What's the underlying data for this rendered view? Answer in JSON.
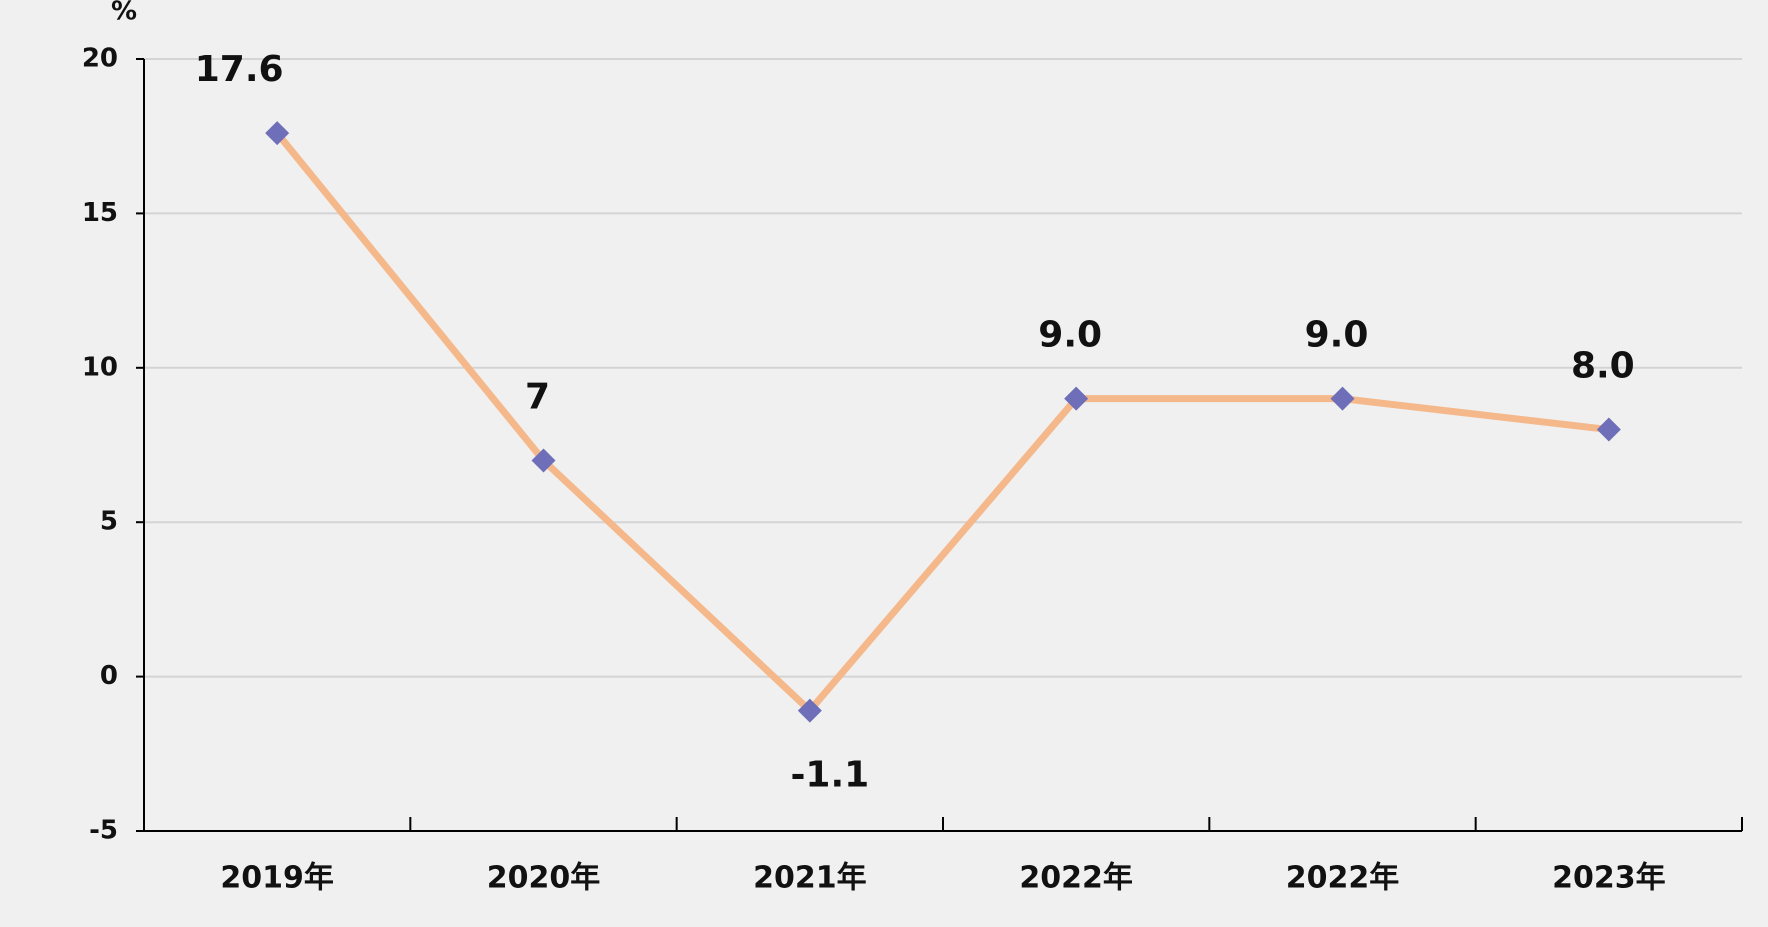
{
  "chart_data": {
    "type": "line",
    "y_unit_label": "%",
    "categories": [
      "2019年",
      "2020年",
      "2021年",
      "2022年",
      "2022年",
      "2023年"
    ],
    "series": [
      {
        "color": "#f5b88a",
        "marker_color": "#6e6fb8",
        "values": [
          17.6,
          7,
          -1.1,
          9.0,
          9.0,
          8.0
        ],
        "value_labels": [
          "17.6",
          "7",
          "-1.1",
          "9.0",
          "9.0",
          "8.0"
        ]
      }
    ],
    "ylim": [
      -5,
      20
    ],
    "yticks": [
      -5,
      0,
      5,
      10,
      15,
      20
    ],
    "grid": true
  }
}
